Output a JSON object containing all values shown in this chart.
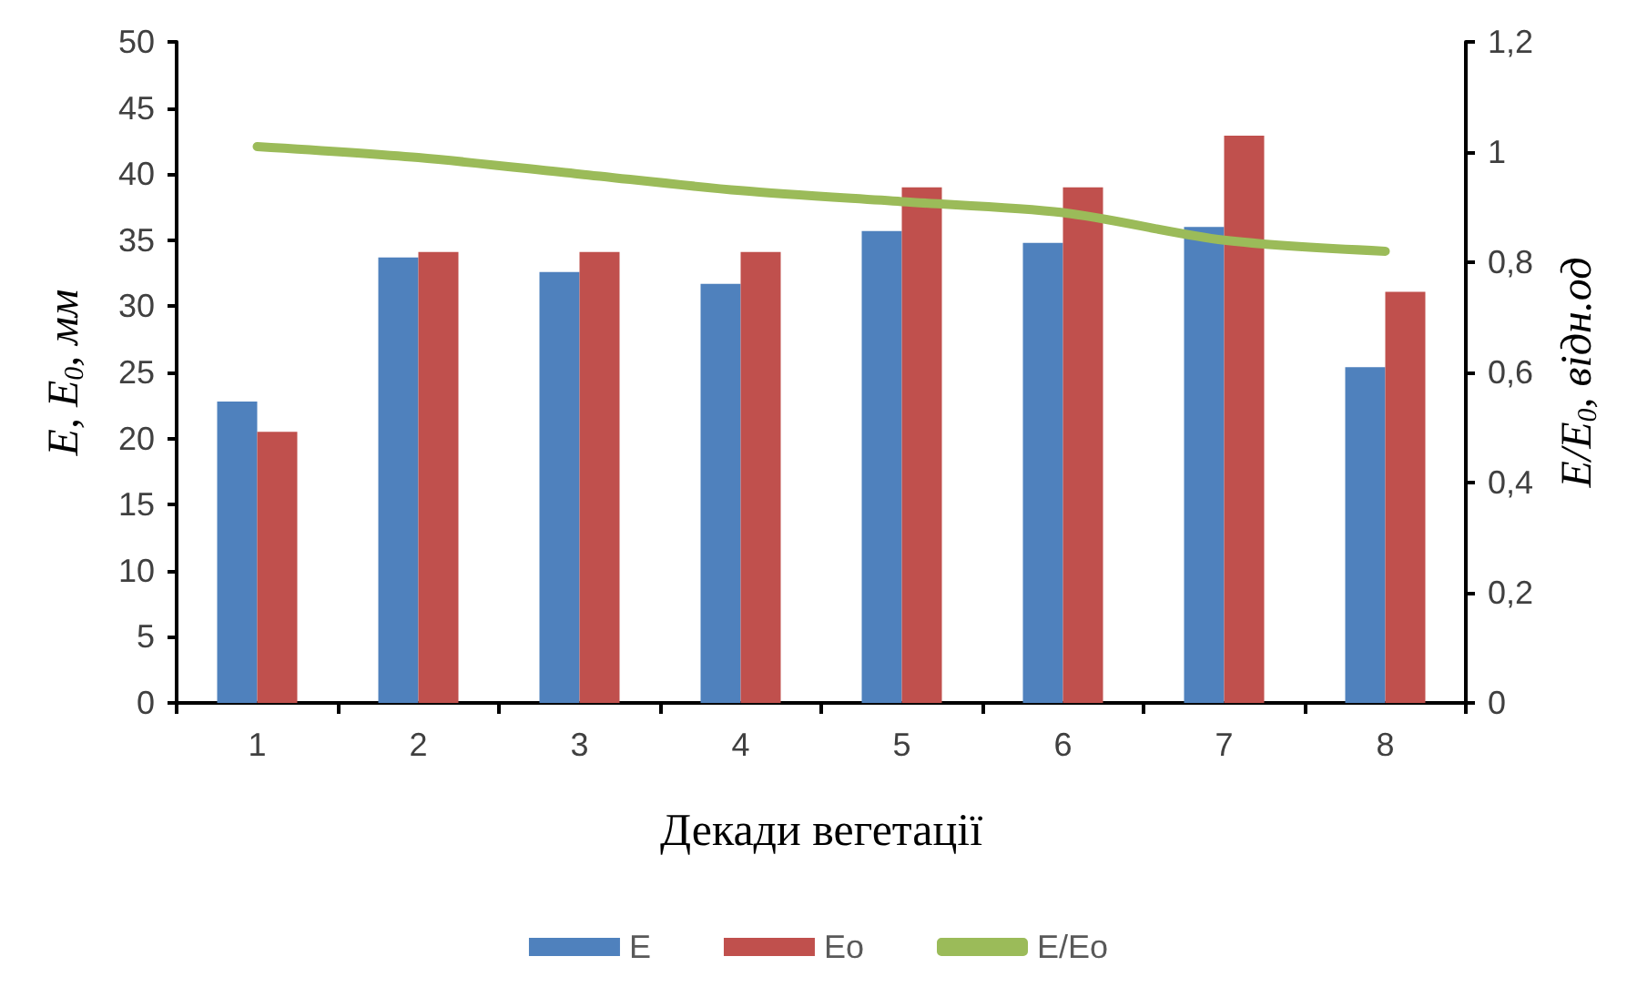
{
  "chart_data": {
    "type": "bar",
    "xlabel": "Декади вегетації",
    "ylabel": "E, E$_{0}$, мм",
    "y2label": "E/E$_{0}$, відн.од",
    "categories": [
      "1",
      "2",
      "3",
      "4",
      "5",
      "6",
      "7",
      "8"
    ],
    "series": [
      {
        "name": "E",
        "color": "#4f81bd",
        "values": [
          22.8,
          33.7,
          32.6,
          31.7,
          35.7,
          34.8,
          36.0,
          25.4
        ]
      },
      {
        "name": "Eo",
        "color": "#c0504d",
        "values": [
          20.5,
          34.1,
          34.1,
          34.1,
          39.0,
          39.0,
          42.9,
          31.1
        ]
      },
      {
        "name": "E/Eo",
        "type": "line",
        "axis": "y2",
        "color": "#9bbb59",
        "marker": "none",
        "values": [
          1.01,
          0.99,
          0.96,
          0.93,
          0.91,
          0.89,
          0.84,
          0.82
        ]
      }
    ],
    "ylim": [
      0,
      50
    ],
    "yticks": [
      0,
      5,
      10,
      15,
      20,
      25,
      30,
      35,
      40,
      45,
      50
    ],
    "y2lim": [
      0,
      1.2
    ],
    "y2ticks": [
      0,
      {
        "value": 0.2,
        "label": "0,2"
      },
      {
        "value": 0.4,
        "label": "0,4"
      },
      {
        "value": 0.6,
        "label": "0,6"
      },
      {
        "value": 0.8,
        "label": "0,8"
      },
      1,
      {
        "value": 1.2,
        "label": "1,2"
      }
    ],
    "grid": false,
    "legend": "bottom"
  }
}
